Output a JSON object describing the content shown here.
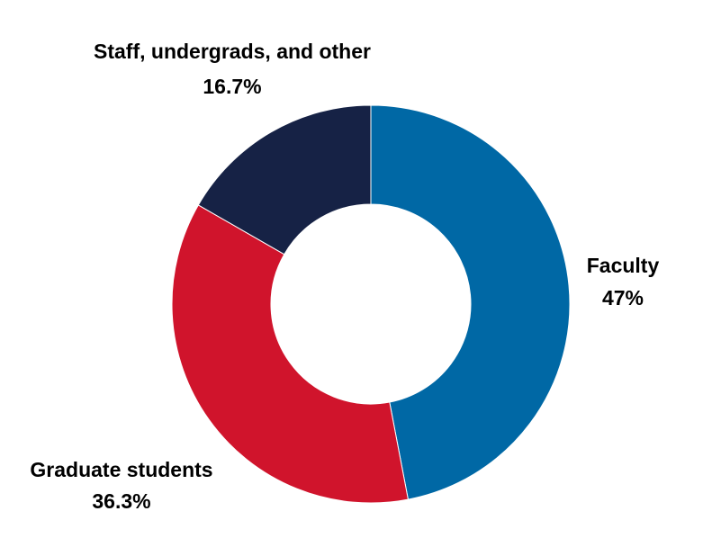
{
  "chart_data": {
    "type": "pie",
    "donut": true,
    "categories": [
      "Faculty",
      "Graduate students",
      "Staff, undergrads, and other"
    ],
    "values": [
      47,
      36.3,
      16.7
    ],
    "value_labels": [
      "47%",
      "36.3%",
      "16.7%"
    ],
    "colors": [
      "#0068a5",
      "#d0142c",
      "#162245"
    ],
    "start": "top",
    "direction": "clockwise",
    "legend": "none"
  }
}
